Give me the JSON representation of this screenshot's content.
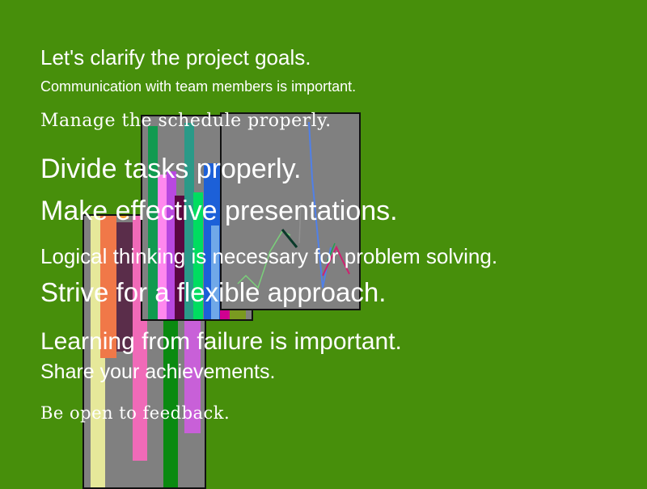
{
  "lines": [
    "Let's clarify the project goals.",
    "Communication with team members is important.",
    "Manage the schedule properly.",
    "Divide tasks properly.",
    "Make effective presentations.",
    "Logical thinking is necessary for problem solving.",
    "Strive for a flexible approach.",
    "Learning from failure is important.",
    "Share your achievements.",
    "Be open to feedback."
  ],
  "colors": {
    "background": "#478f0b",
    "text": "#ffffff",
    "panel": "#808080"
  }
}
